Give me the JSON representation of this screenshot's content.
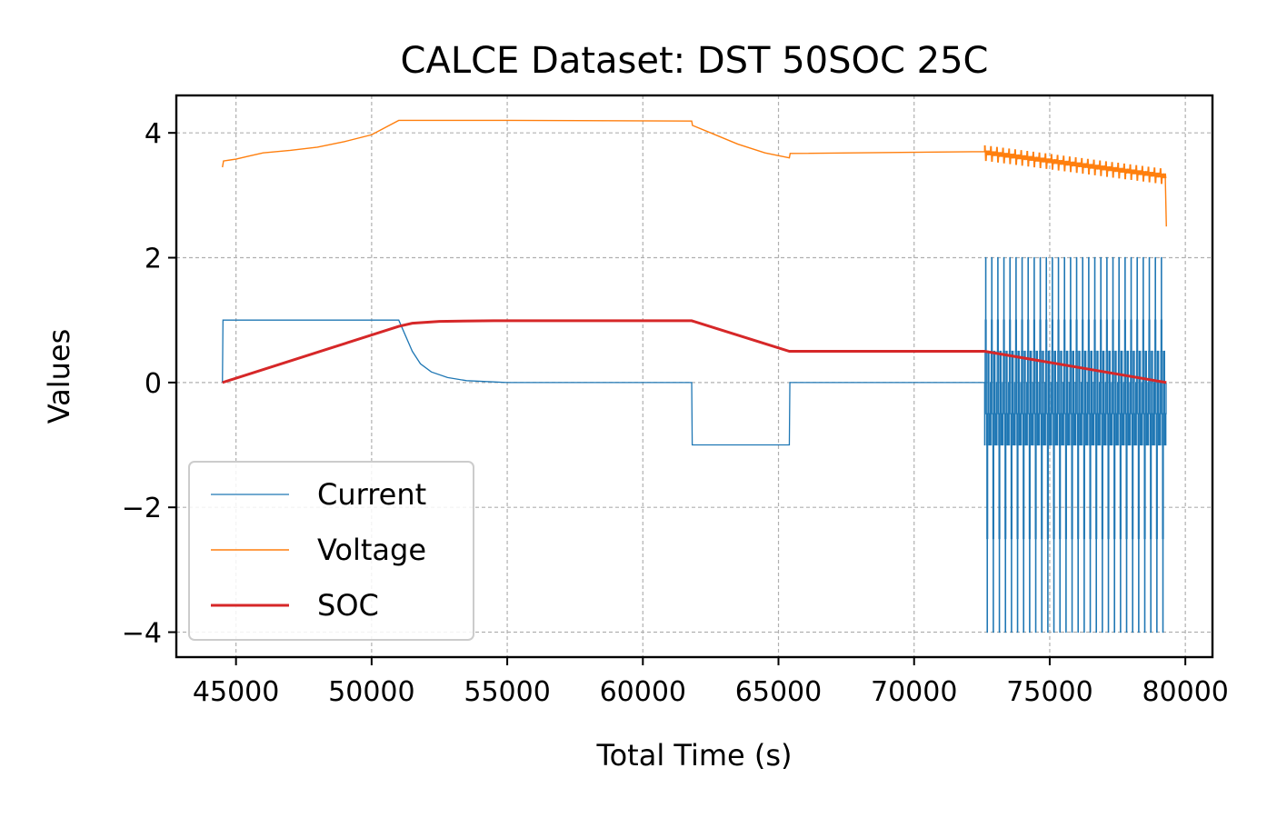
{
  "chart_data": {
    "type": "line",
    "title": "CALCE Dataset: DST 50SOC 25C",
    "xlabel": "Total Time (s)",
    "ylabel": "Values",
    "xlim": [
      42800,
      81000
    ],
    "ylim": [
      -4.4,
      4.6
    ],
    "xticks": [
      45000,
      50000,
      55000,
      60000,
      65000,
      70000,
      75000,
      80000
    ],
    "xtick_labels": [
      "45000",
      "50000",
      "55000",
      "60000",
      "65000",
      "70000",
      "75000",
      "80000"
    ],
    "yticks": [
      -4,
      -2,
      0,
      2,
      4
    ],
    "ytick_labels": [
      "−4",
      "−2",
      "0",
      "2",
      "4"
    ],
    "grid": true,
    "legend_position": "lower-left",
    "series": [
      {
        "name": "Current",
        "color": "#1f77b4",
        "points": [
          [
            44500,
            0
          ],
          [
            44520,
            1
          ],
          [
            51000,
            1
          ],
          [
            51200,
            0.8
          ],
          [
            51500,
            0.5
          ],
          [
            51800,
            0.3
          ],
          [
            52200,
            0.17
          ],
          [
            52800,
            0.08
          ],
          [
            53500,
            0.03
          ],
          [
            54500,
            0.01
          ],
          [
            55000,
            0
          ],
          [
            61800,
            0
          ],
          [
            61820,
            -1
          ],
          [
            65400,
            -1
          ],
          [
            65420,
            0
          ],
          [
            72600,
            0
          ]
        ],
        "dst_cycles": {
          "x_start": 72600,
          "x_end": 79300,
          "count": 30,
          "levels": [
            -1,
            -0.5,
            0.5,
            1,
            2,
            1,
            0.5,
            -0.5,
            -1,
            -2.5,
            -4,
            -2.5,
            -0.5,
            0.5,
            -0.5,
            0.5,
            0.5,
            -1,
            -0.5,
            -1,
            -0.5,
            -1,
            -0.5,
            0
          ]
        }
      },
      {
        "name": "Voltage",
        "color": "#ff7f0e",
        "points": [
          [
            44500,
            3.45
          ],
          [
            44540,
            3.55
          ],
          [
            45000,
            3.58
          ],
          [
            45500,
            3.63
          ],
          [
            46000,
            3.68
          ],
          [
            47000,
            3.72
          ],
          [
            48000,
            3.77
          ],
          [
            49000,
            3.86
          ],
          [
            50000,
            3.97
          ],
          [
            51000,
            4.2
          ],
          [
            55000,
            4.2
          ],
          [
            61800,
            4.19
          ],
          [
            61830,
            4.12
          ],
          [
            62500,
            4.0
          ],
          [
            63500,
            3.82
          ],
          [
            64500,
            3.68
          ],
          [
            65400,
            3.6
          ],
          [
            65430,
            3.67
          ],
          [
            72600,
            3.7
          ]
        ],
        "dst_cycles": {
          "x_start": 72600,
          "x_end": 79300,
          "count": 30,
          "v_start": 3.68,
          "v_end": 3.3,
          "ripple": 0.22,
          "end_drop": 2.5
        }
      },
      {
        "name": "SOC",
        "color": "#d62728",
        "points": [
          [
            44500,
            0
          ],
          [
            51000,
            0.9
          ],
          [
            51500,
            0.95
          ],
          [
            52500,
            0.98
          ],
          [
            54500,
            0.99
          ],
          [
            61800,
            0.99
          ],
          [
            65400,
            0.5
          ],
          [
            72600,
            0.5
          ],
          [
            79300,
            0
          ]
        ]
      }
    ]
  }
}
